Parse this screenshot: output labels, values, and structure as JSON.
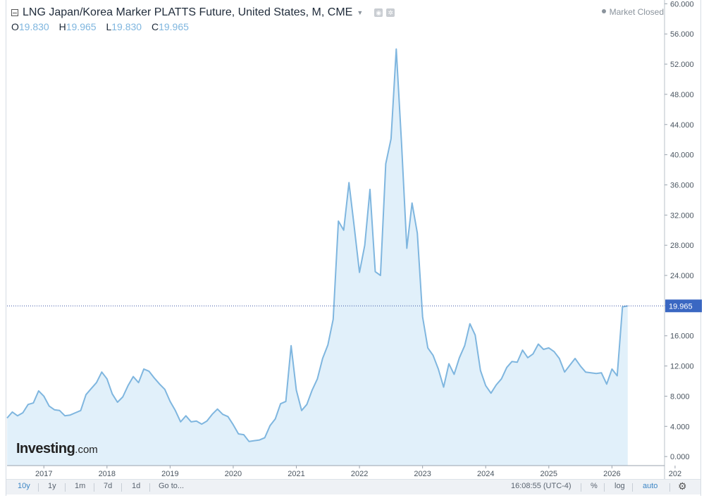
{
  "header": {
    "title": "LNG Japan/Korea Marker PLATTS Future, United States, M, CME",
    "status": "Market Closed",
    "ohlc": [
      {
        "key": "O",
        "value": "19.830"
      },
      {
        "key": "H",
        "value": "19.965"
      },
      {
        "key": "L",
        "value": "19.830"
      },
      {
        "key": "C",
        "value": "19.965"
      }
    ],
    "icons": [
      "caret-down-icon",
      "camera-icon",
      "settings-icon"
    ]
  },
  "logo": {
    "main": "Investing",
    "suffix": ".com"
  },
  "toolbar": {
    "ranges": [
      "10y",
      "1y",
      "1m",
      "7d",
      "1d"
    ],
    "active_range": "10y",
    "goto": "Go to...",
    "time": "16:08:55 (UTC-4)",
    "percent": "%",
    "log": "log",
    "auto": "auto",
    "auto_active": true
  },
  "colors": {
    "line": "#7fb6df",
    "area": "#e1f0fa",
    "current_line": "#3a55a5",
    "price_label_bg": "#3a67c2",
    "price_label_text": "#ffffff"
  },
  "chart_data": {
    "type": "area",
    "title": "LNG Japan/Korea Marker PLATTS Future, United States, M, CME",
    "xlabel": "",
    "ylabel": "",
    "x_ticks": [
      "2017",
      "2018",
      "2019",
      "2020",
      "2021",
      "2022",
      "2023",
      "2024",
      "2025",
      "2026",
      "202"
    ],
    "y_ticks": [
      "0.000",
      "4.000",
      "8.000",
      "12.000",
      "16.000",
      "20.000",
      "24.000",
      "28.000",
      "32.000",
      "36.000",
      "40.000",
      "44.000",
      "48.000",
      "52.000",
      "56.000",
      "60.000"
    ],
    "ylim": [
      -1.2,
      60.5
    ],
    "xlim": [
      "2016-06",
      "2026-11"
    ],
    "grid": false,
    "last_price": 19.965,
    "last_price_label": "19.965",
    "series": [
      {
        "values": [
          [
            "2016-06",
            5.1
          ],
          [
            "2016-07",
            5.9
          ],
          [
            "2016-08",
            5.4
          ],
          [
            "2016-09",
            5.8
          ],
          [
            "2016-10",
            6.9
          ],
          [
            "2016-11",
            7.1
          ],
          [
            "2016-12",
            8.7
          ],
          [
            "2017-01",
            8.0
          ],
          [
            "2017-02",
            6.7
          ],
          [
            "2017-03",
            6.2
          ],
          [
            "2017-04",
            6.1
          ],
          [
            "2017-05",
            5.4
          ],
          [
            "2017-06",
            5.5
          ],
          [
            "2017-07",
            5.8
          ],
          [
            "2017-08",
            6.1
          ],
          [
            "2017-09",
            8.2
          ],
          [
            "2017-10",
            9.0
          ],
          [
            "2017-11",
            9.8
          ],
          [
            "2017-12",
            11.2
          ],
          [
            "2018-01",
            10.3
          ],
          [
            "2018-02",
            8.3
          ],
          [
            "2018-03",
            7.2
          ],
          [
            "2018-04",
            7.9
          ],
          [
            "2018-05",
            9.4
          ],
          [
            "2018-06",
            10.6
          ],
          [
            "2018-07",
            9.8
          ],
          [
            "2018-08",
            11.6
          ],
          [
            "2018-09",
            11.3
          ],
          [
            "2018-10",
            10.4
          ],
          [
            "2018-11",
            9.6
          ],
          [
            "2018-12",
            8.9
          ],
          [
            "2019-01",
            7.3
          ],
          [
            "2019-02",
            6.1
          ],
          [
            "2019-03",
            4.6
          ],
          [
            "2019-04",
            5.4
          ],
          [
            "2019-05",
            4.6
          ],
          [
            "2019-06",
            4.7
          ],
          [
            "2019-07",
            4.3
          ],
          [
            "2019-08",
            4.7
          ],
          [
            "2019-09",
            5.6
          ],
          [
            "2019-10",
            6.3
          ],
          [
            "2019-11",
            5.6
          ],
          [
            "2019-12",
            5.3
          ],
          [
            "2020-01",
            4.2
          ],
          [
            "2020-02",
            3.0
          ],
          [
            "2020-03",
            2.9
          ],
          [
            "2020-04",
            2.0
          ],
          [
            "2020-05",
            2.1
          ],
          [
            "2020-06",
            2.2
          ],
          [
            "2020-07",
            2.5
          ],
          [
            "2020-08",
            4.1
          ],
          [
            "2020-09",
            5.0
          ],
          [
            "2020-10",
            7.0
          ],
          [
            "2020-11",
            7.3
          ],
          [
            "2020-12",
            14.7
          ],
          [
            "2021-01",
            8.8
          ],
          [
            "2021-02",
            6.1
          ],
          [
            "2021-03",
            6.9
          ],
          [
            "2021-04",
            8.8
          ],
          [
            "2021-05",
            10.3
          ],
          [
            "2021-06",
            13.0
          ],
          [
            "2021-07",
            14.8
          ],
          [
            "2021-08",
            18.2
          ],
          [
            "2021-09",
            31.2
          ],
          [
            "2021-10",
            30.0
          ],
          [
            "2021-11",
            36.3
          ],
          [
            "2021-12",
            30.5
          ],
          [
            "2022-01",
            24.4
          ],
          [
            "2022-02",
            28.0
          ],
          [
            "2022-03",
            35.4
          ],
          [
            "2022-04",
            24.5
          ],
          [
            "2022-05",
            24.0
          ],
          [
            "2022-06",
            38.8
          ],
          [
            "2022-07",
            42.1
          ],
          [
            "2022-08",
            54.0
          ],
          [
            "2022-09",
            41.5
          ],
          [
            "2022-10",
            27.6
          ],
          [
            "2022-11",
            33.6
          ],
          [
            "2022-12",
            29.6
          ],
          [
            "2023-01",
            18.5
          ],
          [
            "2023-02",
            14.4
          ],
          [
            "2023-03",
            13.4
          ],
          [
            "2023-04",
            11.6
          ],
          [
            "2023-05",
            9.2
          ],
          [
            "2023-06",
            12.3
          ],
          [
            "2023-07",
            10.9
          ],
          [
            "2023-08",
            13.1
          ],
          [
            "2023-09",
            14.7
          ],
          [
            "2023-10",
            17.6
          ],
          [
            "2023-11",
            16.1
          ],
          [
            "2023-12",
            11.4
          ],
          [
            "2024-01",
            9.4
          ],
          [
            "2024-02",
            8.4
          ],
          [
            "2024-03",
            9.5
          ],
          [
            "2024-04",
            10.3
          ],
          [
            "2024-05",
            11.8
          ],
          [
            "2024-06",
            12.6
          ],
          [
            "2024-07",
            12.5
          ],
          [
            "2024-08",
            14.1
          ],
          [
            "2024-09",
            13.1
          ],
          [
            "2024-10",
            13.6
          ],
          [
            "2024-11",
            14.9
          ],
          [
            "2024-12",
            14.2
          ],
          [
            "2025-01",
            14.4
          ],
          [
            "2025-02",
            13.9
          ],
          [
            "2025-03",
            13.0
          ],
          [
            "2025-04",
            11.2
          ],
          [
            "2025-05",
            12.1
          ],
          [
            "2025-06",
            13.0
          ],
          [
            "2025-07",
            12.0
          ],
          [
            "2025-08",
            11.2
          ],
          [
            "2025-09",
            11.1
          ],
          [
            "2025-10",
            11.0
          ],
          [
            "2025-11",
            11.1
          ],
          [
            "2025-12",
            9.6
          ],
          [
            "2026-01",
            11.6
          ],
          [
            "2026-02",
            10.7
          ],
          [
            "2026-03",
            19.83
          ],
          [
            "2026-04",
            19.965
          ]
        ]
      }
    ]
  }
}
